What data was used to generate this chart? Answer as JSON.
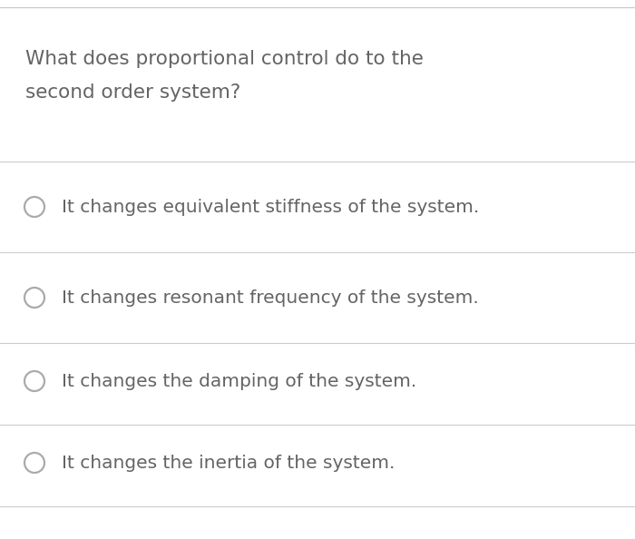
{
  "question_line1": "What does proportional control do to the",
  "question_line2": "second order system?",
  "options": [
    "It changes equivalent stiffness of the system.",
    "It changes resonant frequency of the system.",
    "It changes the damping of the system.",
    "It changes the inertia of the system."
  ],
  "background_color": "#ffffff",
  "text_color": "#646464",
  "line_color": "#cccccc",
  "question_fontsize": 15.5,
  "option_fontsize": 14.5,
  "circle_edge_color": "#aaaaaa",
  "top_line_color": "#c8c8c8"
}
